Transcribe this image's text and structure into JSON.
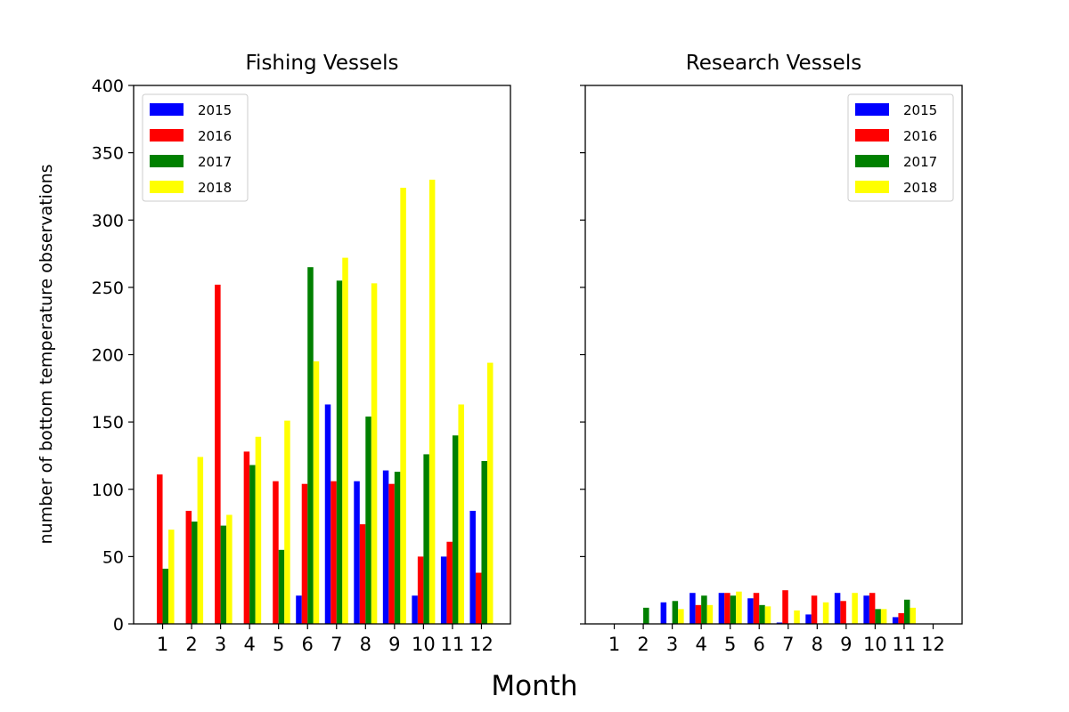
{
  "figure": {
    "xlabel": "Month",
    "ylabel": "number of bottom temperature observations"
  },
  "chart_data": [
    {
      "type": "bar",
      "title": "Fishing Vessels",
      "xlabel": "",
      "ylabel": "number of bottom temperature observations",
      "categories": [
        "1",
        "2",
        "3",
        "4",
        "5",
        "6",
        "7",
        "8",
        "9",
        "10",
        "11",
        "12"
      ],
      "ylim": [
        0,
        400
      ],
      "yticks": [
        0,
        50,
        100,
        150,
        200,
        250,
        300,
        350,
        400
      ],
      "grid": false,
      "legend_position": "upper left",
      "series": [
        {
          "name": "2015",
          "color": "#0000ff",
          "values": [
            0,
            0,
            0,
            0,
            0,
            21,
            163,
            106,
            114,
            21,
            50,
            84
          ]
        },
        {
          "name": "2016",
          "color": "#ff0000",
          "values": [
            111,
            84,
            252,
            128,
            106,
            104,
            106,
            74,
            104,
            50,
            61,
            38
          ]
        },
        {
          "name": "2017",
          "color": "#008000",
          "values": [
            41,
            76,
            73,
            118,
            55,
            265,
            255,
            154,
            113,
            126,
            140,
            121
          ]
        },
        {
          "name": "2018",
          "color": "#ffff00",
          "values": [
            70,
            124,
            81,
            139,
            151,
            195,
            272,
            253,
            324,
            330,
            163,
            194
          ]
        }
      ]
    },
    {
      "type": "bar",
      "title": "Research Vessels",
      "xlabel": "",
      "ylabel": "",
      "categories": [
        "1",
        "2",
        "3",
        "4",
        "5",
        "6",
        "7",
        "8",
        "9",
        "10",
        "11",
        "12"
      ],
      "ylim": [
        0,
        400
      ],
      "shared_y": true,
      "grid": false,
      "legend_position": "upper right",
      "series": [
        {
          "name": "2015",
          "color": "#0000ff",
          "values": [
            0,
            0,
            16,
            23,
            23,
            19,
            1,
            7,
            23,
            21,
            5,
            0
          ]
        },
        {
          "name": "2016",
          "color": "#ff0000",
          "values": [
            0,
            0,
            0,
            14,
            23,
            23,
            25,
            21,
            17,
            23,
            8,
            0
          ]
        },
        {
          "name": "2017",
          "color": "#008000",
          "values": [
            0,
            12,
            17,
            21,
            21,
            14,
            0,
            0,
            0,
            11,
            18,
            0
          ]
        },
        {
          "name": "2018",
          "color": "#ffff00",
          "values": [
            0,
            0,
            11,
            14,
            24,
            13,
            10,
            16,
            23,
            11,
            12,
            0
          ]
        }
      ]
    }
  ]
}
